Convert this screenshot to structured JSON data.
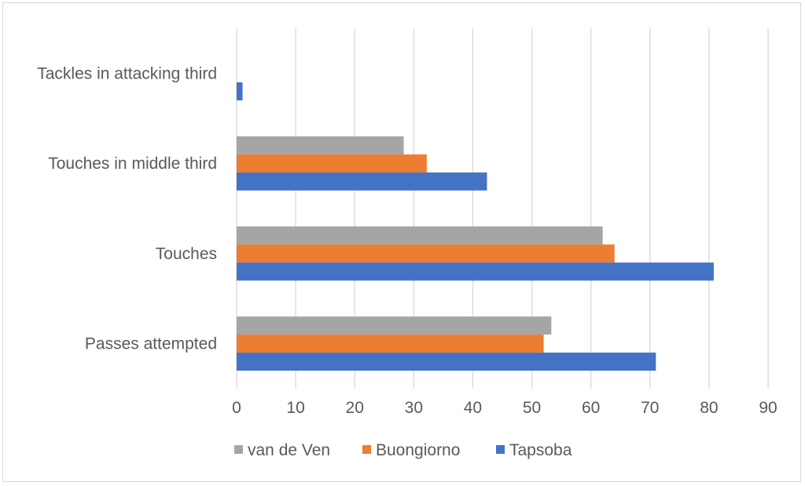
{
  "chart_data": {
    "type": "bar",
    "orientation": "horizontal",
    "title": "",
    "xlabel": "",
    "ylabel": "",
    "categories": [
      "Passes attempted",
      "Touches",
      "Touches in middle third",
      "Tackles in attacking third"
    ],
    "series": [
      {
        "name": "van de Ven",
        "color": "#a5a5a5",
        "values": [
          53.3,
          62,
          28.3,
          0
        ]
      },
      {
        "name": "Buongiorno",
        "color": "#ed7d31",
        "values": [
          52,
          64,
          32.2,
          0
        ]
      },
      {
        "name": "Tapsoba",
        "color": "#4472c4",
        "values": [
          71,
          80.8,
          42.4,
          1
        ]
      }
    ],
    "xlim": [
      0,
      90
    ],
    "xticks": [
      "0",
      "10",
      "20",
      "30",
      "40",
      "50",
      "60",
      "70",
      "80",
      "90"
    ],
    "grid": "vertical",
    "legend_position": "bottom"
  }
}
